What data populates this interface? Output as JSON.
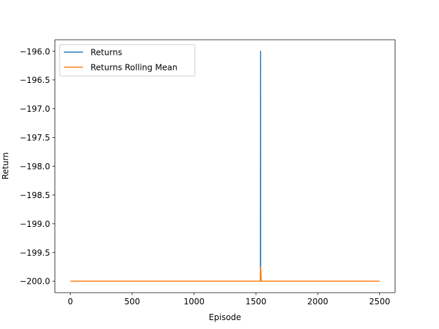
{
  "chart_data": {
    "type": "line",
    "title": "",
    "xlabel": "Episode",
    "ylabel": "Return",
    "xlim": [
      -125,
      2625
    ],
    "ylim": [
      -200.2,
      -195.8
    ],
    "xticks": [
      0,
      500,
      1000,
      1500,
      2000,
      2500
    ],
    "xtick_labels": [
      "0",
      "500",
      "1000",
      "1500",
      "2000",
      "2500"
    ],
    "yticks": [
      -200.0,
      -199.5,
      -199.0,
      -198.5,
      -198.0,
      -197.5,
      -197.0,
      -196.5,
      -196.0
    ],
    "ytick_labels": [
      "−200.0",
      "−199.5",
      "−199.0",
      "−198.5",
      "−198.0",
      "−197.5",
      "−197.0",
      "−196.5",
      "−196.0"
    ],
    "grid": false,
    "legend_position": "top-left",
    "series": [
      {
        "name": "Returns",
        "color": "#1f77b4",
        "x": [
          0,
          1536,
          1537,
          1538,
          2500
        ],
        "y": [
          -200.0,
          -200.0,
          -196.0,
          -200.0,
          -200.0
        ]
      },
      {
        "name": "Returns Rolling Mean",
        "color": "#ff7f0e",
        "x": [
          0,
          1536,
          1537,
          1538,
          1539,
          1540,
          1541,
          1542,
          1543,
          2500
        ],
        "y": [
          -200.0,
          -200.0,
          -199.75,
          -199.78,
          -199.8,
          -199.83,
          -199.85,
          -199.88,
          -200.0,
          -200.0
        ]
      }
    ]
  }
}
